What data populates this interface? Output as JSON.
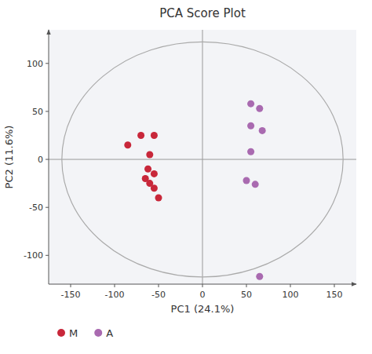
{
  "chart_data": {
    "type": "scatter",
    "title": "PCA Score Plot",
    "x_label": "PC1 (24.1%)",
    "y_label": "PC2 (11.6%)",
    "xlim": [
      -175,
      175
    ],
    "ylim": [
      -130,
      135
    ],
    "xticks": [
      -150,
      -100,
      -50,
      0,
      50,
      100,
      150
    ],
    "yticks": [
      -100,
      -50,
      0,
      50,
      100
    ],
    "grid": false,
    "legend": "bottom",
    "series": [
      {
        "name": "M",
        "color": "#c8273a",
        "marker": "circle",
        "x": [
          -85,
          -70,
          -55,
          -60,
          -55,
          -65,
          -60,
          -55,
          -50,
          -62
        ],
        "values": [
          15,
          25,
          25,
          5,
          -15,
          -20,
          -25,
          -30,
          -40,
          -10
        ]
      },
      {
        "name": "A",
        "color": "#a96ab0",
        "marker": "circle",
        "x": [
          55,
          65,
          55,
          68,
          55,
          50,
          60,
          65
        ],
        "values": [
          58,
          53,
          35,
          30,
          8,
          -22,
          -26,
          -122
        ]
      }
    ],
    "ellipse": {
      "cx": 0,
      "cy": 0,
      "width": 320,
      "height": 245,
      "color": "#aaaaaa"
    },
    "crosshair": {
      "x": 0,
      "y": 0
    }
  }
}
